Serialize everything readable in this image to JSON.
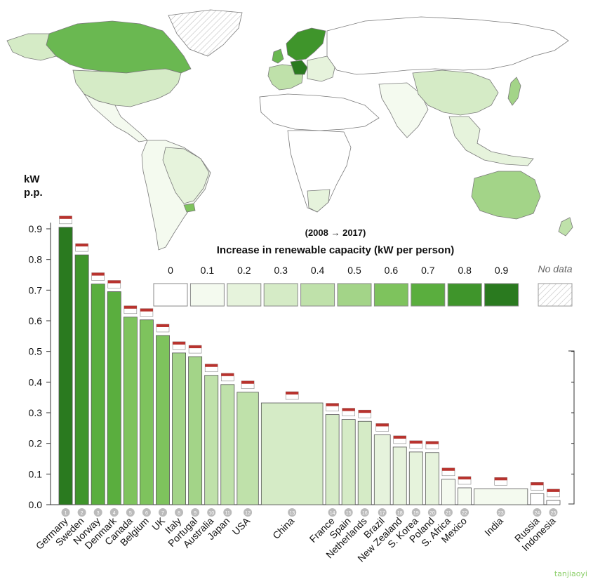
{
  "chart_data": {
    "type": "bar",
    "variable_width": true,
    "title": "Increase in renewable capacity (kW per person)",
    "subtitle": "(2008 → 2017)",
    "ylabel_line1": "kW",
    "ylabel_line2": "p.p.",
    "ylim": [
      0,
      0.95
    ],
    "yticks": [
      "0.0",
      "0.1",
      "0.2",
      "0.3",
      "0.4",
      "0.5",
      "0.6",
      "0.7",
      "0.8",
      "0.9"
    ],
    "categories": [
      "Germany",
      "Sweden",
      "Norway",
      "Denmark",
      "Canada",
      "Belgium",
      "UK",
      "Italy",
      "Portugal",
      "Australia",
      "Japan",
      "USA",
      "China",
      "France",
      "Spain",
      "Netherlands",
      "Brazil",
      "New Zealand",
      "S. Korea",
      "Poland",
      "S. Africa",
      "Mexico",
      "India",
      "Russia",
      "Indonesia"
    ],
    "ranks": [
      "1",
      "2",
      "3",
      "4",
      "5",
      "6",
      "7",
      "8",
      "9",
      "10",
      "11",
      "12",
      "13",
      "14",
      "15",
      "16",
      "17",
      "18",
      "19",
      "20",
      "21",
      "22",
      "23",
      "24",
      "25"
    ],
    "values": [
      0.905,
      0.815,
      0.72,
      0.695,
      0.612,
      0.603,
      0.552,
      0.495,
      0.483,
      0.422,
      0.392,
      0.367,
      0.332,
      0.294,
      0.278,
      0.272,
      0.228,
      0.188,
      0.172,
      0.17,
      0.083,
      0.055,
      0.052,
      0.036,
      0.014
    ],
    "relative_widths": [
      1,
      1,
      1,
      1,
      1,
      1,
      1,
      1,
      1,
      1,
      1,
      1.6,
      4.6,
      1,
      1,
      1,
      1.2,
      1,
      1,
      1,
      1,
      1,
      4,
      1,
      1
    ],
    "legend": {
      "labels": [
        "0",
        "0.1",
        "0.2",
        "0.3",
        "0.4",
        "0.5",
        "0.6",
        "0.7",
        "0.8",
        "0.9"
      ],
      "no_data_label": "No data",
      "colors": [
        "#ffffff",
        "#f4faef",
        "#e6f3dc",
        "#d5ebc6",
        "#bfe1aa",
        "#a3d488",
        "#7ec35d",
        "#5aae3e",
        "#3f952b",
        "#2a7a1f"
      ]
    },
    "map_colors": {
      "land_default": "#ffffff",
      "border": "#7a7a7a",
      "no_data_hatch": "#bdbdbd"
    }
  },
  "watermark": "tanjiaoyi"
}
